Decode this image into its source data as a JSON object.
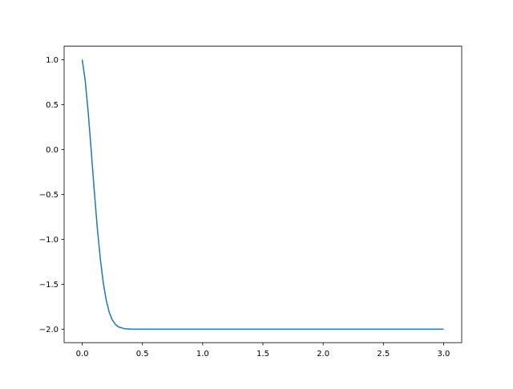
{
  "chart_data": {
    "type": "line",
    "title": "",
    "xlabel": "",
    "ylabel": "",
    "xlim": [
      -0.15,
      3.15
    ],
    "ylim": [
      -2.15,
      1.15
    ],
    "grid": false,
    "xticks": [
      0.0,
      0.5,
      1.0,
      1.5,
      2.0,
      2.5,
      3.0
    ],
    "xtick_labels": [
      "0.0",
      "0.5",
      "1.0",
      "1.5",
      "2.0",
      "2.5",
      "3.0"
    ],
    "yticks": [
      1.0,
      0.5,
      0.0,
      -0.5,
      -1.0,
      -1.5,
      -2.0
    ],
    "ytick_labels": [
      "1.0",
      "0.5",
      "0.0",
      "−0.5",
      "−1.0",
      "−1.5",
      "−2.0"
    ],
    "series": [
      {
        "color": "#1f77b4",
        "x": [
          0,
          0.025,
          0.05,
          0.075,
          0.1,
          0.125,
          0.15,
          0.175,
          0.2,
          0.225,
          0.25,
          0.275,
          0.3,
          0.35,
          0.4,
          0.5,
          1.0,
          1.5,
          2.0,
          2.5,
          3.0
        ],
        "y": [
          1.0,
          0.767,
          0.411,
          -0.015,
          -0.457,
          -0.867,
          -1.214,
          -1.485,
          -1.681,
          -1.814,
          -1.897,
          -1.946,
          -1.974,
          -1.995,
          -1.999,
          -2.0,
          -2.0,
          -2.0,
          -2.0,
          -2.0,
          -2.0
        ]
      }
    ]
  }
}
